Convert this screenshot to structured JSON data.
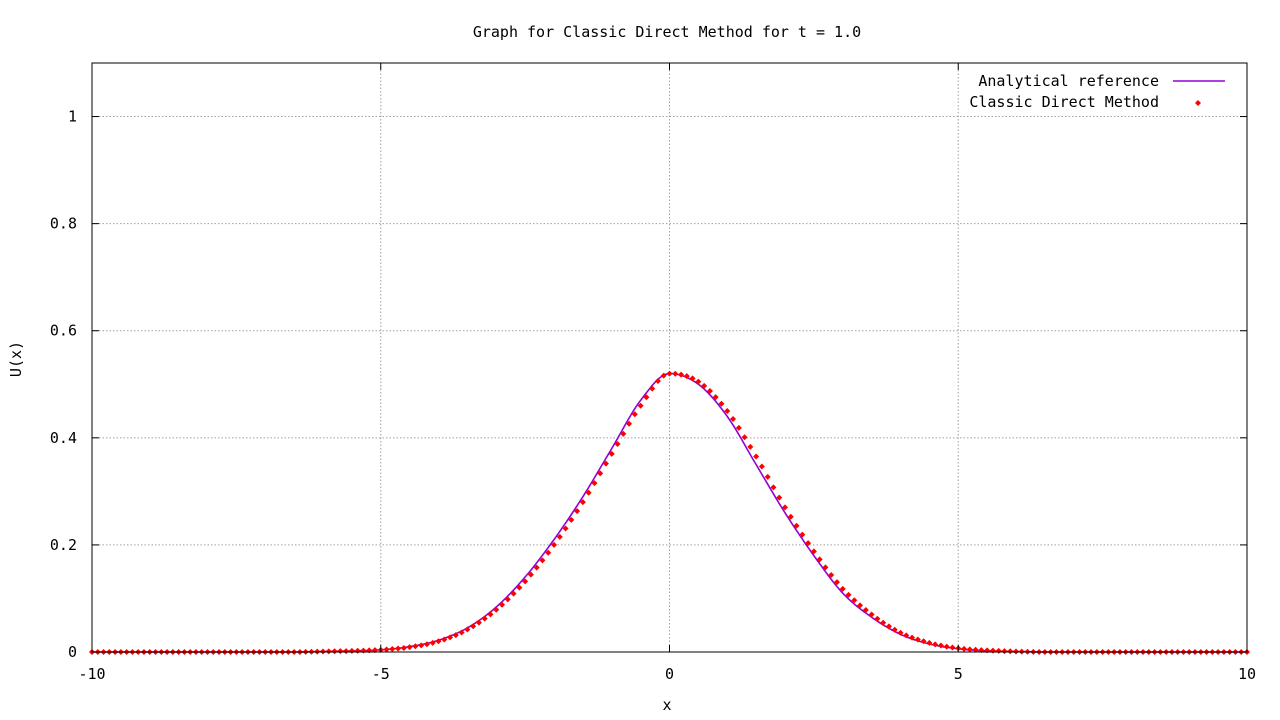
{
  "chart_data": {
    "type": "line",
    "title": "Graph for Classic Direct Method for t = 1.0",
    "xlabel": "x",
    "ylabel": "U(x)",
    "xlim": [
      -10,
      10
    ],
    "ylim": [
      0,
      1.1
    ],
    "grid": true,
    "legend_position": "top-right",
    "x_ticks": [
      -10,
      -5,
      0,
      5,
      10
    ],
    "x_tick_labels": [
      "-10",
      "-5",
      "0",
      "5",
      "10"
    ],
    "y_ticks": [
      0,
      0.2,
      0.4,
      0.6,
      0.8,
      1
    ],
    "y_tick_labels": [
      "0",
      "0.2",
      "0.4",
      "0.6",
      "0.8",
      "1"
    ],
    "series": [
      {
        "name": "Analytical reference",
        "style": "line",
        "color": "#9400d3",
        "x": [
          -10,
          -9.5,
          -9,
          -8.5,
          -8,
          -7.5,
          -7,
          -6.5,
          -6,
          -5.5,
          -5,
          -4.5,
          -4,
          -3.5,
          -3,
          -2.5,
          -2,
          -1.5,
          -1,
          -0.5,
          0,
          0.5,
          1,
          1.5,
          2,
          2.5,
          3,
          3.5,
          4,
          4.5,
          5,
          5.5,
          6,
          6.5,
          7,
          7.5,
          8,
          8.5,
          9,
          9.5,
          10
        ],
        "y": [
          0,
          0,
          0,
          0,
          0,
          0,
          0,
          0,
          0.001,
          0.002,
          0.004,
          0.01,
          0.022,
          0.045,
          0.084,
          0.14,
          0.21,
          0.29,
          0.38,
          0.47,
          0.52,
          0.5,
          0.44,
          0.35,
          0.26,
          0.18,
          0.11,
          0.065,
          0.033,
          0.015,
          0.006,
          0.002,
          0.001,
          0,
          0,
          0,
          0,
          0,
          0,
          0,
          0
        ]
      },
      {
        "name": "Classic Direct Method",
        "style": "points",
        "color": "#ff0000",
        "x": [
          -10,
          -9.5,
          -9,
          -8.5,
          -8,
          -7.5,
          -7,
          -6.5,
          -6,
          -5.5,
          -5,
          -4.5,
          -4,
          -3.5,
          -3,
          -2.5,
          -2,
          -1.5,
          -1,
          -0.5,
          0,
          0.5,
          1,
          1.5,
          2,
          2.5,
          3,
          3.5,
          4,
          4.5,
          5,
          5.5,
          6,
          6.5,
          7,
          7.5,
          8,
          8.5,
          9,
          9.5,
          10
        ],
        "y": [
          0,
          0,
          0,
          0,
          0,
          0,
          0,
          0,
          0.001,
          0.002,
          0.004,
          0.009,
          0.02,
          0.042,
          0.079,
          0.132,
          0.2,
          0.28,
          0.37,
          0.46,
          0.52,
          0.505,
          0.45,
          0.365,
          0.27,
          0.188,
          0.118,
          0.07,
          0.036,
          0.017,
          0.007,
          0.003,
          0.001,
          0,
          0,
          0,
          0,
          0,
          0,
          0,
          0
        ]
      }
    ]
  }
}
